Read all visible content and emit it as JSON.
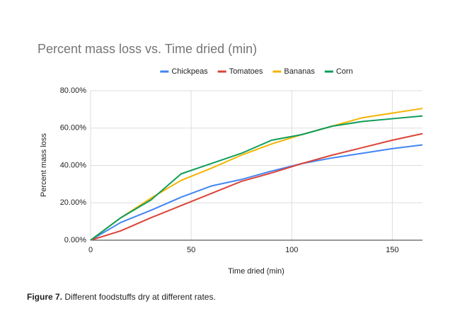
{
  "chart_data": {
    "type": "line",
    "title": "Percent mass loss vs. Time dried (min)",
    "x_label": "Time dried (min)",
    "y_label": "Percent mass loss",
    "x": [
      0,
      15,
      30,
      45,
      60,
      75,
      90,
      105,
      120,
      135,
      150,
      165
    ],
    "series": [
      {
        "name": "Chickpeas",
        "color": "#4285f4",
        "values": [
          0,
          9.5,
          16,
          23,
          29,
          32.5,
          37,
          41,
          44,
          46.5,
          49,
          51
        ]
      },
      {
        "name": "Tomatoes",
        "color": "#db4437",
        "values": [
          0,
          5,
          12,
          18.5,
          25,
          31.5,
          36,
          41,
          45.5,
          49.5,
          53.5,
          57
        ]
      },
      {
        "name": "Bananas",
        "color": "#f4b400",
        "values": [
          0,
          12,
          22.5,
          32,
          38.5,
          45.5,
          51.5,
          56.5,
          61,
          65.5,
          68,
          70.5
        ]
      },
      {
        "name": "Corn",
        "color": "#0f9d58",
        "values": [
          0,
          12,
          21.5,
          35.5,
          41,
          46.5,
          53.5,
          56.5,
          61,
          63.5,
          65,
          66.5
        ]
      }
    ],
    "xlim": [
      0,
      165
    ],
    "xticks": [
      0,
      50,
      100,
      150
    ],
    "ylim": [
      0,
      80
    ],
    "yticks": [
      {
        "value": 0,
        "label": "0.00%"
      },
      {
        "value": 20,
        "label": "20.00%"
      },
      {
        "value": 40,
        "label": "40.00%"
      },
      {
        "value": 60,
        "label": "60.00%"
      },
      {
        "value": 80,
        "label": "80.00%"
      }
    ],
    "grid": true,
    "legend": "top"
  },
  "caption": {
    "label": "Figure 7.",
    "text": "Different foodstuffs dry at different rates."
  }
}
